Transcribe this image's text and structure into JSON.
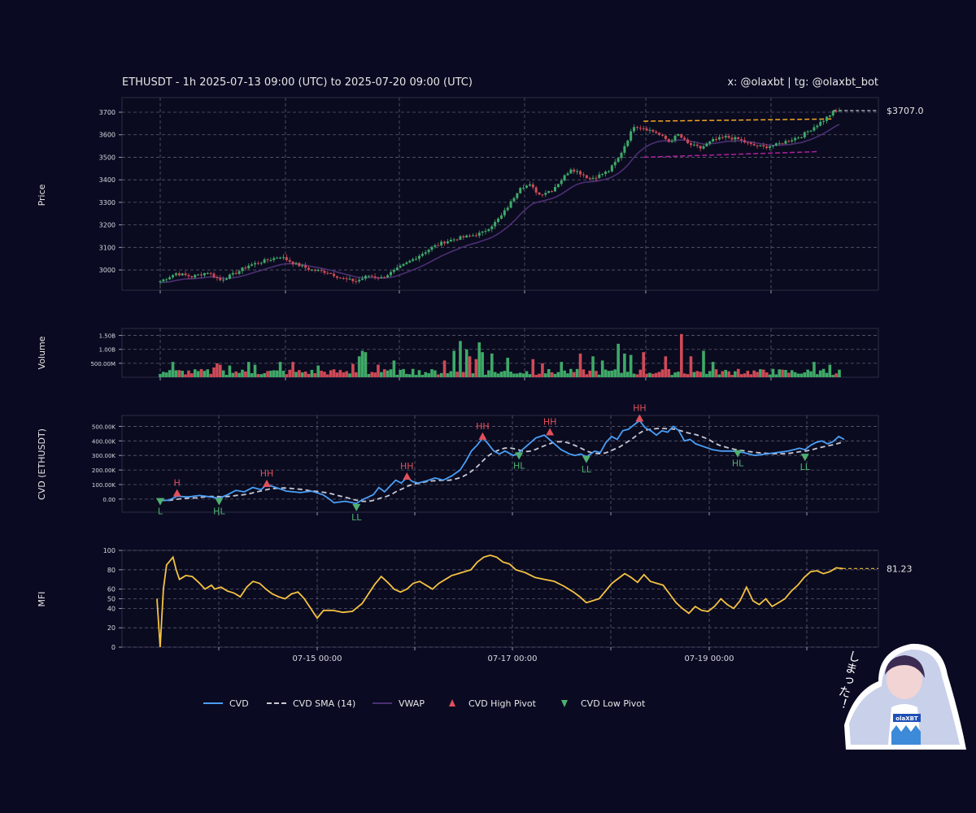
{
  "header": {
    "title": "ETHUSDT - 1h 2025-07-13 09:00 (UTC) to 2025-07-20 09:00 (UTC)",
    "credit": "x: @olaxbt | tg: @olaxbt_bot"
  },
  "colors": {
    "background": "#0a0b22",
    "up": "#3fa968",
    "down": "#d04a57",
    "cvd": "#4a9ef5",
    "cvd_sma": "#c8c8d4",
    "vwap": "#4c2f72",
    "mfi": "#f5c242",
    "resistance": "#f5a623",
    "support": "#b0209e",
    "high_pivot": "#e0505a",
    "low_pivot": "#50b070"
  },
  "mascot": {
    "caption": "しまった！",
    "badge": "olaXBT"
  },
  "chart_data": [
    {
      "id": "price",
      "type": "candlestick",
      "ylabel": "Price",
      "ylim": [
        2910,
        3765
      ],
      "yticks": [
        3000,
        3100,
        3200,
        3300,
        3400,
        3500,
        3600,
        3700
      ],
      "last_price_label": "$3707.0",
      "last_price": 3707,
      "resistance": [
        3660,
        3670
      ],
      "support": [
        3500,
        3525
      ],
      "anchors": [
        [
          0,
          2950
        ],
        [
          5,
          2985
        ],
        [
          10,
          2970
        ],
        [
          15,
          2990
        ],
        [
          19,
          2955
        ],
        [
          23,
          2980
        ],
        [
          28,
          3020
        ],
        [
          33,
          3040
        ],
        [
          38,
          3060
        ],
        [
          43,
          3025
        ],
        [
          48,
          3000
        ],
        [
          53,
          2990
        ],
        [
          58,
          2960
        ],
        [
          62,
          2950
        ],
        [
          66,
          2975
        ],
        [
          70,
          2965
        ],
        [
          74,
          2995
        ],
        [
          78,
          3030
        ],
        [
          82,
          3065
        ],
        [
          86,
          3100
        ],
        [
          90,
          3125
        ],
        [
          94,
          3140
        ],
        [
          98,
          3150
        ],
        [
          102,
          3165
        ],
        [
          106,
          3210
        ],
        [
          108,
          3240
        ],
        [
          111,
          3300
        ],
        [
          114,
          3370
        ],
        [
          117,
          3375
        ],
        [
          120,
          3335
        ],
        [
          124,
          3355
        ],
        [
          127,
          3400
        ],
        [
          130,
          3450
        ],
        [
          133,
          3430
        ],
        [
          136,
          3405
        ],
        [
          139,
          3420
        ],
        [
          142,
          3440
        ],
        [
          145,
          3495
        ],
        [
          148,
          3580
        ],
        [
          150,
          3640
        ],
        [
          153,
          3630
        ],
        [
          157,
          3610
        ],
        [
          161,
          3570
        ],
        [
          164,
          3600
        ],
        [
          167,
          3560
        ],
        [
          171,
          3540
        ],
        [
          175,
          3575
        ],
        [
          179,
          3590
        ],
        [
          183,
          3580
        ],
        [
          187,
          3555
        ],
        [
          191,
          3545
        ],
        [
          195,
          3555
        ],
        [
          199,
          3575
        ],
        [
          203,
          3595
        ],
        [
          207,
          3635
        ],
        [
          210,
          3665
        ],
        [
          213,
          3700
        ],
        [
          215,
          3707
        ]
      ]
    },
    {
      "id": "volume",
      "type": "bar",
      "ylabel": "Volume",
      "ylim": [
        0,
        1.75
      ],
      "yticks": [
        0.5,
        1.0,
        1.5
      ],
      "ytick_labels": [
        "500.00M",
        "1.00B",
        "1.50B"
      ],
      "highlights": [
        [
          4,
          0.55
        ],
        [
          17,
          0.35
        ],
        [
          18,
          0.5
        ],
        [
          19,
          0.45
        ],
        [
          22,
          0.42
        ],
        [
          28,
          0.55
        ],
        [
          30,
          0.45
        ],
        [
          38,
          0.55
        ],
        [
          42,
          0.55
        ],
        [
          50,
          0.42
        ],
        [
          61,
          0.48
        ],
        [
          63,
          0.75
        ],
        [
          64,
          0.95
        ],
        [
          65,
          0.9
        ],
        [
          69,
          0.45
        ],
        [
          74,
          0.6
        ],
        [
          80,
          0.3
        ],
        [
          90,
          0.6
        ],
        [
          93,
          0.95
        ],
        [
          95,
          1.3
        ],
        [
          97,
          1.0
        ],
        [
          98,
          0.75
        ],
        [
          100,
          0.65
        ],
        [
          101,
          1.25
        ],
        [
          102,
          0.9
        ],
        [
          105,
          0.85
        ],
        [
          110,
          0.7
        ],
        [
          118,
          0.65
        ],
        [
          121,
          0.5
        ],
        [
          127,
          0.55
        ],
        [
          133,
          0.85
        ],
        [
          137,
          0.75
        ],
        [
          140,
          0.6
        ],
        [
          145,
          1.2
        ],
        [
          147,
          0.85
        ],
        [
          149,
          0.8
        ],
        [
          153,
          0.9
        ],
        [
          160,
          0.75
        ],
        [
          165,
          1.55
        ],
        [
          168,
          0.75
        ],
        [
          172,
          0.95
        ],
        [
          175,
          0.55
        ],
        [
          183,
          0.3
        ],
        [
          194,
          0.3
        ],
        [
          207,
          0.55
        ],
        [
          210,
          0.3
        ],
        [
          212,
          0.45
        ]
      ]
    },
    {
      "id": "cvd",
      "type": "line",
      "ylabel": "CVD (ETHUSDT)",
      "ylim": [
        -90,
        575
      ],
      "yticks": [
        0,
        100,
        200,
        300,
        400,
        500
      ],
      "ytick_labels": [
        "0.00",
        "100.00K",
        "200.00K",
        "300.00K",
        "400.00K",
        "500.00K"
      ],
      "anchors": [
        [
          0,
          -10
        ],
        [
          3,
          -8
        ],
        [
          6,
          20
        ],
        [
          10,
          15
        ],
        [
          14,
          25
        ],
        [
          18,
          15
        ],
        [
          21,
          5
        ],
        [
          24,
          30
        ],
        [
          27,
          60
        ],
        [
          30,
          50
        ],
        [
          33,
          80
        ],
        [
          36,
          65
        ],
        [
          38,
          100
        ],
        [
          42,
          75
        ],
        [
          45,
          55
        ],
        [
          50,
          45
        ],
        [
          54,
          55
        ],
        [
          58,
          30
        ],
        [
          60,
          5
        ],
        [
          62,
          -25
        ],
        [
          66,
          -15
        ],
        [
          70,
          -30
        ],
        [
          72,
          -5
        ],
        [
          76,
          30
        ],
        [
          78,
          80
        ],
        [
          80,
          50
        ],
        [
          82,
          90
        ],
        [
          84,
          130
        ],
        [
          86,
          110
        ],
        [
          88,
          150
        ],
        [
          90,
          120
        ],
        [
          92,
          110
        ],
        [
          95,
          125
        ],
        [
          98,
          145
        ],
        [
          101,
          130
        ],
        [
          104,
          160
        ],
        [
          107,
          200
        ],
        [
          109,
          260
        ],
        [
          111,
          330
        ],
        [
          113,
          370
        ],
        [
          115,
          420
        ],
        [
          117,
          380
        ],
        [
          119,
          330
        ],
        [
          121,
          310
        ],
        [
          123,
          330
        ],
        [
          126,
          300
        ],
        [
          128,
          320
        ],
        [
          131,
          370
        ],
        [
          134,
          420
        ],
        [
          137,
          440
        ],
        [
          140,
          390
        ],
        [
          143,
          340
        ],
        [
          146,
          310
        ],
        [
          148,
          300
        ],
        [
          150,
          310
        ],
        [
          152,
          290
        ],
        [
          155,
          330
        ],
        [
          157,
          320
        ],
        [
          159,
          390
        ],
        [
          161,
          430
        ],
        [
          163,
          410
        ],
        [
          165,
          470
        ],
        [
          167,
          480
        ],
        [
          169,
          510
        ],
        [
          171,
          540
        ],
        [
          173,
          490
        ],
        [
          175,
          470
        ],
        [
          177,
          440
        ],
        [
          179,
          470
        ],
        [
          181,
          460
        ],
        [
          183,
          500
        ],
        [
          185,
          470
        ],
        [
          187,
          400
        ],
        [
          189,
          410
        ],
        [
          191,
          380
        ],
        [
          194,
          360
        ],
        [
          197,
          340
        ],
        [
          200,
          330
        ],
        [
          204,
          330
        ],
        [
          208,
          320
        ],
        [
          212,
          300
        ],
        [
          216,
          310
        ],
        [
          220,
          320
        ],
        [
          224,
          330
        ],
        [
          228,
          350
        ],
        [
          230,
          340
        ],
        [
          232,
          370
        ],
        [
          234,
          390
        ],
        [
          236,
          400
        ],
        [
          238,
          380
        ],
        [
          240,
          395
        ],
        [
          242,
          430
        ],
        [
          244,
          410
        ]
      ],
      "pivots": [
        {
          "label": "L",
          "type": "low",
          "i": 0,
          "v": -10
        },
        {
          "label": "H",
          "type": "high",
          "i": 6,
          "v": 35
        },
        {
          "label": "HL",
          "type": "low",
          "i": 21,
          "v": -10
        },
        {
          "label": "HH",
          "type": "high",
          "i": 38,
          "v": 100
        },
        {
          "label": "LL",
          "type": "low",
          "i": 70,
          "v": -50
        },
        {
          "label": "HH",
          "type": "high",
          "i": 88,
          "v": 150
        },
        {
          "label": "HH",
          "type": "high",
          "i": 115,
          "v": 425
        },
        {
          "label": "HL",
          "type": "low",
          "i": 128,
          "v": 305
        },
        {
          "label": "HH",
          "type": "high",
          "i": 139,
          "v": 455
        },
        {
          "label": "LL",
          "type": "low",
          "i": 152,
          "v": 280
        },
        {
          "label": "HH",
          "type": "high",
          "i": 171,
          "v": 550
        },
        {
          "label": "HL",
          "type": "low",
          "i": 206,
          "v": 320
        },
        {
          "label": "LL",
          "type": "low",
          "i": 230,
          "v": 295
        }
      ]
    },
    {
      "id": "mfi",
      "type": "line",
      "ylabel": "MFI",
      "ylim": [
        0,
        100
      ],
      "yticks": [
        0,
        20,
        40,
        50,
        60,
        80,
        100
      ],
      "last_value_label": "81.23",
      "last_value": 81.23,
      "x_labels": [
        "07-15 00:00",
        "07-17 00:00",
        "07-19 00:00"
      ],
      "anchors": [
        [
          0,
          50
        ],
        [
          1,
          0
        ],
        [
          2,
          60
        ],
        [
          3,
          85
        ],
        [
          5,
          93
        ],
        [
          6,
          80
        ],
        [
          7,
          70
        ],
        [
          9,
          74
        ],
        [
          11,
          73
        ],
        [
          13,
          67
        ],
        [
          15,
          60
        ],
        [
          17,
          64
        ],
        [
          18,
          60
        ],
        [
          20,
          62
        ],
        [
          22,
          58
        ],
        [
          24,
          56
        ],
        [
          26,
          52
        ],
        [
          28,
          62
        ],
        [
          30,
          68
        ],
        [
          32,
          66
        ],
        [
          34,
          60
        ],
        [
          36,
          55
        ],
        [
          38,
          52
        ],
        [
          40,
          50
        ],
        [
          42,
          55
        ],
        [
          44,
          57
        ],
        [
          46,
          50
        ],
        [
          48,
          40
        ],
        [
          50,
          30
        ],
        [
          52,
          38
        ],
        [
          55,
          38
        ],
        [
          58,
          36
        ],
        [
          61,
          37
        ],
        [
          64,
          45
        ],
        [
          66,
          55
        ],
        [
          68,
          65
        ],
        [
          70,
          73
        ],
        [
          72,
          67
        ],
        [
          74,
          60
        ],
        [
          76,
          57
        ],
        [
          78,
          60
        ],
        [
          80,
          66
        ],
        [
          82,
          68
        ],
        [
          84,
          64
        ],
        [
          86,
          60
        ],
        [
          88,
          66
        ],
        [
          90,
          70
        ],
        [
          92,
          74
        ],
        [
          94,
          76
        ],
        [
          96,
          78
        ],
        [
          98,
          80
        ],
        [
          100,
          88
        ],
        [
          102,
          93
        ],
        [
          104,
          95
        ],
        [
          106,
          93
        ],
        [
          108,
          88
        ],
        [
          110,
          86
        ],
        [
          112,
          80
        ],
        [
          115,
          77
        ],
        [
          118,
          72
        ],
        [
          121,
          70
        ],
        [
          124,
          68
        ],
        [
          127,
          63
        ],
        [
          130,
          57
        ],
        [
          132,
          52
        ],
        [
          134,
          46
        ],
        [
          136,
          48
        ],
        [
          138,
          50
        ],
        [
          140,
          58
        ],
        [
          142,
          66
        ],
        [
          144,
          71
        ],
        [
          146,
          76
        ],
        [
          148,
          72
        ],
        [
          150,
          67
        ],
        [
          152,
          75
        ],
        [
          154,
          68
        ],
        [
          156,
          66
        ],
        [
          158,
          64
        ],
        [
          160,
          55
        ],
        [
          162,
          46
        ],
        [
          164,
          40
        ],
        [
          166,
          35
        ],
        [
          168,
          42
        ],
        [
          170,
          38
        ],
        [
          172,
          37
        ],
        [
          174,
          42
        ],
        [
          176,
          50
        ],
        [
          178,
          44
        ],
        [
          180,
          40
        ],
        [
          182,
          48
        ],
        [
          184,
          62
        ],
        [
          186,
          48
        ],
        [
          188,
          44
        ],
        [
          190,
          50
        ],
        [
          192,
          42
        ],
        [
          194,
          46
        ],
        [
          196,
          50
        ],
        [
          198,
          58
        ],
        [
          200,
          64
        ],
        [
          202,
          72
        ],
        [
          204,
          78
        ],
        [
          206,
          79
        ],
        [
          208,
          76
        ],
        [
          210,
          78
        ],
        [
          212,
          82
        ],
        [
          214,
          81.23
        ]
      ]
    }
  ],
  "legend": {
    "items": [
      {
        "label": "CVD",
        "kind": "line"
      },
      {
        "label": "CVD SMA (14)",
        "kind": "dash"
      },
      {
        "label": "VWAP",
        "kind": "line"
      },
      {
        "label": "CVD High Pivot",
        "kind": "up-triangle"
      },
      {
        "label": "CVD Low Pivot",
        "kind": "down-triangle"
      }
    ]
  }
}
